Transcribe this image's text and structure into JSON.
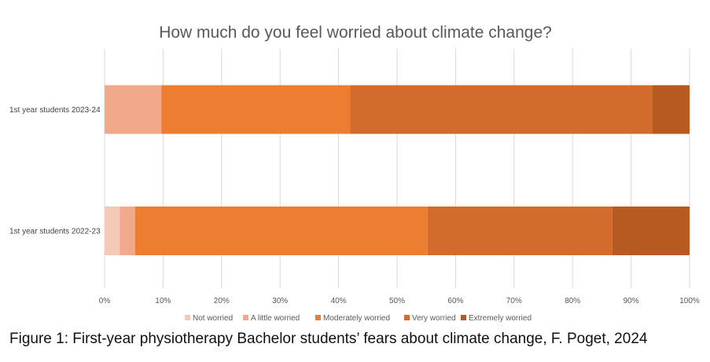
{
  "chart_data": {
    "type": "bar",
    "orientation": "horizontal",
    "stacked": true,
    "percent_stacked": true,
    "title": "How much do you feel worried about climate change?",
    "categories": [
      "1st year students 2023-24",
      "1st year students 2022-23"
    ],
    "series": [
      {
        "name": "Not worried",
        "color": "#F4C9B6",
        "values": [
          0,
          2.6
        ]
      },
      {
        "name": "A little worried",
        "color": "#F0A98A",
        "values": [
          9.7,
          2.6
        ]
      },
      {
        "name": "Moderately worried",
        "color": "#ED7D31",
        "values": [
          32.3,
          50.0
        ]
      },
      {
        "name": "Very worried",
        "color": "#D36B2A",
        "values": [
          51.6,
          31.6
        ]
      },
      {
        "name": "Extremely worried",
        "color": "#B65A22",
        "values": [
          6.4,
          13.2
        ]
      }
    ],
    "xlim": [
      0,
      100
    ],
    "x_ticks": [
      "0%",
      "10%",
      "20%",
      "30%",
      "40%",
      "50%",
      "60%",
      "70%",
      "80%",
      "90%",
      "100%"
    ],
    "grid": true,
    "legend_position": "bottom"
  },
  "caption": "Figure 1: First-year physiotherapy Bachelor students’ fears about climate change, F. Poget, 2024"
}
